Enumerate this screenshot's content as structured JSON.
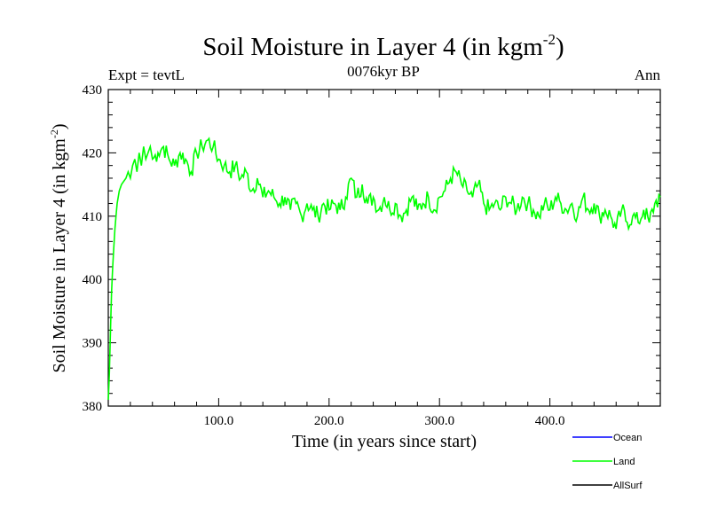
{
  "chart_data": {
    "type": "line",
    "title": "Soil Moisture in Layer 4 (in kgm",
    "title_exponent": "-2",
    "title_close": ")",
    "subtitle_left": "Expt = tevtL",
    "subtitle_center": "0076kyr BP",
    "subtitle_right": "Ann",
    "xlabel": "Time (in years since start)",
    "ylabel": "Soil Moisture in Layer 4 (in kgm",
    "ylabel_exponent": "-2",
    "ylabel_close": ")",
    "xlim": [
      0,
      500
    ],
    "ylim": [
      380,
      430
    ],
    "x_ticks": [
      100,
      200,
      300,
      400
    ],
    "x_tick_labels": [
      "100.0",
      "200.0",
      "300.0",
      "400.0"
    ],
    "y_ticks": [
      380,
      390,
      400,
      410,
      420,
      430
    ],
    "y_tick_labels": [
      "380",
      "390",
      "400",
      "410",
      "420",
      "430"
    ],
    "legend_position": "bottom-right",
    "series": [
      {
        "name": "Ocean",
        "color": "#0000ff",
        "x": [],
        "y": []
      },
      {
        "name": "Land",
        "color": "#00ff00",
        "x": [
          0,
          1,
          2,
          3,
          4,
          5,
          6,
          7,
          8,
          9,
          10,
          12,
          14,
          16,
          18,
          20,
          22,
          24,
          26,
          28,
          30,
          32,
          34,
          36,
          38,
          40,
          45,
          50,
          55,
          60,
          65,
          70,
          75,
          80,
          85,
          90,
          95,
          100,
          105,
          110,
          115,
          120,
          125,
          130,
          135,
          140,
          145,
          150,
          155,
          160,
          165,
          170,
          175,
          180,
          185,
          190,
          195,
          200,
          205,
          210,
          215,
          220,
          225,
          230,
          235,
          240,
          245,
          250,
          255,
          260,
          265,
          270,
          275,
          280,
          285,
          290,
          295,
          300,
          305,
          310,
          315,
          320,
          325,
          330,
          335,
          340,
          345,
          350,
          355,
          360,
          365,
          370,
          375,
          380,
          385,
          390,
          395,
          400,
          405,
          410,
          415,
          420,
          425,
          430,
          435,
          440,
          445,
          450,
          455,
          460,
          465,
          470,
          475,
          480,
          485,
          490,
          495,
          500
        ],
        "y": [
          381,
          385,
          392,
          398,
          402,
          405,
          408,
          410,
          412,
          413,
          414,
          415,
          415.5,
          416,
          417,
          416,
          418,
          419,
          417,
          420,
          418,
          421,
          419,
          420,
          421,
          419,
          420,
          421,
          419,
          418,
          420,
          419,
          417,
          420,
          421,
          422,
          421,
          419,
          418,
          417,
          418,
          416,
          417,
          414,
          416,
          413,
          414,
          413,
          412,
          413,
          411,
          412,
          410,
          412,
          411,
          410,
          412,
          411,
          412,
          411,
          413,
          416,
          413,
          415,
          412,
          413,
          411,
          413,
          411,
          412,
          410,
          411,
          413,
          411,
          412,
          413,
          411,
          413,
          414,
          416,
          417,
          415,
          414,
          413,
          415,
          412,
          411,
          412,
          411,
          413,
          412,
          411,
          413,
          412,
          411,
          410,
          412,
          411,
          413,
          412,
          411,
          412,
          410,
          413,
          411,
          412,
          410,
          411,
          410,
          408,
          411,
          409,
          410,
          409,
          411,
          409,
          412,
          413
        ]
      },
      {
        "name": "AllSurf",
        "color": "#000000",
        "x": [],
        "y": []
      }
    ]
  }
}
